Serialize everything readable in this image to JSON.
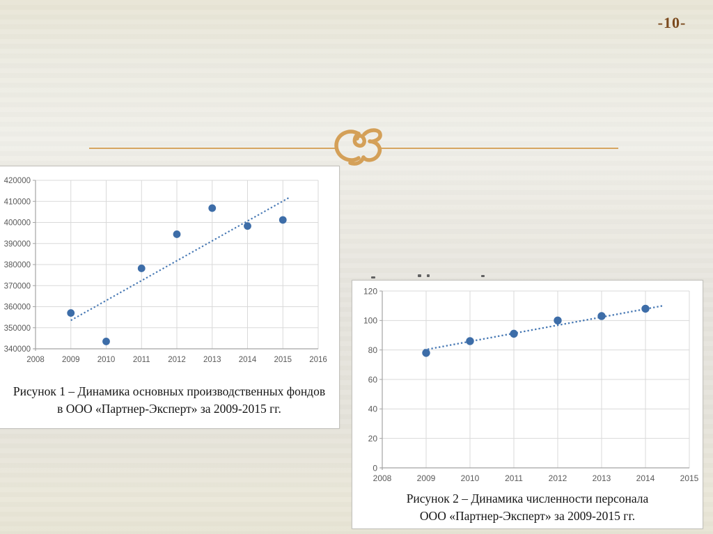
{
  "page": {
    "number": "-10-",
    "number_color": "#7b4a1e"
  },
  "ornament": {
    "name": "calligraphic-flourish",
    "color": "#d4a058"
  },
  "figures": {
    "figure1": {
      "caption_line1": "Рисунок 1 – Динамика основных производственных фондов",
      "caption_line2": "в ООО «Партнер-Эксперт»  за 2009-2015 гг."
    },
    "figure2": {
      "caption_line1": "Рисунок 2 – Динамика численности персонала",
      "caption_line2": "ООО «Партнер-Эксперт» за 2009-2015 гг."
    }
  },
  "chart_data": [
    {
      "type": "scatter",
      "title": "",
      "x": [
        2009,
        2010,
        2011,
        2012,
        2013,
        2014,
        2015
      ],
      "values": [
        357000,
        343500,
        378200,
        394400,
        406800,
        398300,
        401200
      ],
      "trendline": {
        "style": "dotted",
        "x": [
          2009,
          2015.2
        ],
        "y": [
          353500,
          412000
        ]
      },
      "xlim": [
        2008,
        2016
      ],
      "ylim": [
        340000,
        420000
      ],
      "x_ticks": [
        2008,
        2009,
        2010,
        2011,
        2012,
        2013,
        2014,
        2015,
        2016
      ],
      "y_ticks": [
        340000,
        350000,
        360000,
        370000,
        380000,
        390000,
        400000,
        410000,
        420000
      ],
      "grid": true,
      "legend": "none",
      "point_color": "#3d6da8",
      "trend_color": "#4577b3",
      "grid_color": "#d9d9d9",
      "axis_color": "#a3a3a3",
      "caption": "Рисунок 1 – Динамика основных производственных фондов в ООО «Партнер-Эксперт» за 2009-2015 гг."
    },
    {
      "type": "scatter",
      "title": "",
      "x": [
        2009,
        2010,
        2011,
        2012,
        2013,
        2014
      ],
      "values": [
        78,
        86,
        91,
        100,
        103,
        108
      ],
      "trendline": {
        "style": "dotted",
        "x": [
          2008.95,
          2014.4
        ],
        "y": [
          80,
          110
        ]
      },
      "xlim": [
        2008,
        2015
      ],
      "ylim": [
        0,
        120
      ],
      "x_ticks": [
        2008,
        2009,
        2010,
        2011,
        2012,
        2013,
        2014,
        2015
      ],
      "y_ticks": [
        0,
        20,
        40,
        60,
        80,
        100,
        120
      ],
      "grid": true,
      "legend": "none",
      "point_color": "#3d6da8",
      "trend_color": "#4577b3",
      "grid_color": "#d9d9d9",
      "axis_color": "#a3a3a3",
      "caption": "Рисунок 2 – Динамика численности персонала ООО «Партнер-Эксперт» за 2009-2015 гг."
    }
  ]
}
